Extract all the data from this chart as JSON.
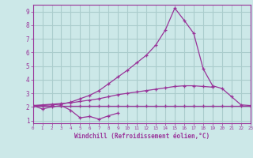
{
  "background_color": "#cce8e8",
  "grid_color": "#aacccc",
  "line_color": "#993399",
  "x": [
    0,
    1,
    2,
    3,
    4,
    5,
    6,
    7,
    8,
    9,
    10,
    11,
    12,
    13,
    14,
    15,
    16,
    17,
    18,
    19,
    20,
    21,
    22,
    23
  ],
  "line1": [
    2.1,
    1.85,
    2.0,
    2.1,
    1.75,
    1.2,
    1.3,
    1.1,
    1.35,
    1.55,
    null,
    null,
    null,
    null,
    null,
    null,
    null,
    null,
    null,
    null,
    null,
    null,
    null,
    null
  ],
  "line2": [
    2.1,
    2.1,
    2.1,
    2.1,
    2.1,
    2.1,
    2.1,
    2.1,
    2.1,
    2.1,
    2.1,
    2.1,
    2.1,
    2.1,
    2.1,
    2.1,
    2.1,
    2.1,
    2.1,
    2.1,
    2.1,
    2.1,
    2.1,
    2.1
  ],
  "line3": [
    2.1,
    2.15,
    2.2,
    2.25,
    2.3,
    2.4,
    2.5,
    2.6,
    2.75,
    2.9,
    3.0,
    3.1,
    3.2,
    3.3,
    3.4,
    3.5,
    3.55,
    3.55,
    3.5,
    3.45,
    null,
    null,
    null,
    null
  ],
  "line4": [
    2.1,
    2.1,
    2.15,
    2.2,
    2.35,
    2.6,
    2.85,
    3.2,
    3.7,
    4.2,
    4.7,
    5.25,
    5.8,
    6.55,
    7.65,
    9.25,
    8.35,
    7.4,
    4.8,
    3.55,
    3.35,
    2.75,
    2.15,
    2.1
  ],
  "xlim": [
    0,
    23
  ],
  "ylim": [
    0.8,
    9.5
  ],
  "yticks": [
    1,
    2,
    3,
    4,
    5,
    6,
    7,
    8,
    9
  ],
  "xticks": [
    0,
    1,
    2,
    3,
    4,
    5,
    6,
    7,
    8,
    9,
    10,
    11,
    12,
    13,
    14,
    15,
    16,
    17,
    18,
    19,
    20,
    21,
    22,
    23
  ],
  "xlabel": "Windchill (Refroidissement éolien,°C)",
  "figsize": [
    3.2,
    2.0
  ],
  "dpi": 100
}
